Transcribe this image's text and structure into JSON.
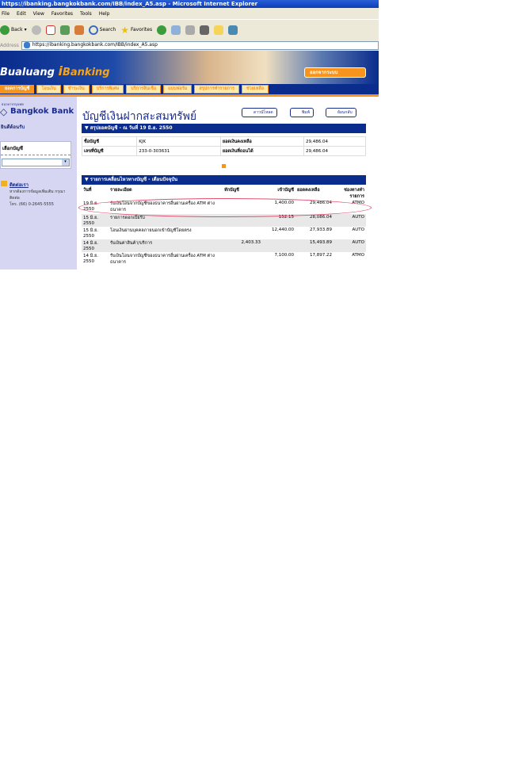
{
  "window": {
    "title": "https://ibanking.bangkokbank.com/IBB/index_A5.asp - Microsoft Internet Explorer"
  },
  "menu": [
    "File",
    "Edit",
    "View",
    "Favorites",
    "Tools",
    "Help"
  ],
  "toolbar": {
    "back": "Back",
    "search": "Search",
    "favorites": "Favorites"
  },
  "address": {
    "label": "Address",
    "url": "https://ibanking.bangkokbank.com/IBB/index_A5.asp"
  },
  "banner": {
    "logo_left": "Bualuang",
    "logo_right": "Banking",
    "logout": "ออกจากระบบ"
  },
  "nav": [
    "ยอดการบัญชี",
    "โอนเงิน",
    "ชำระเงิน",
    "บริการพิเศษ",
    "บริการสินเชื่อ",
    "แบบฟอร์ม",
    "สรุปการทำรายการ",
    "ช่วยเหลือ"
  ],
  "sidebar": {
    "bank_thai": "ธนาคารกรุงเทพ",
    "bank": "Bangkok Bank",
    "welcome": "ยินดีต้อนรับ",
    "select_account": "เลือกบัญชี",
    "contact_title": "ติดต่อเรา",
    "contact_text": "หากต้องการข้อมูลเพิ่มเติม กรุณาติดต่อ",
    "phone": "โทร. (66) 0-2645-5555"
  },
  "page": {
    "title": "บัญชีเงินฝากสะสมทรัพย์",
    "buttons": [
      "ดาวน์โหลด",
      "พิมพ์",
      "ย้อนกลับ"
    ]
  },
  "summary": {
    "header": "สรุปยอดบัญชี - ณ วันที่ 19 มิ.ย. 2550",
    "rows": [
      [
        "ชื่อบัญชี",
        "KJK",
        "ยอดเงินคงเหลือ",
        "29,486.04"
      ],
      [
        "เลขที่บัญชี",
        "233-0-303631",
        "ยอดเงินที่ถอนได้",
        "29,486.04"
      ]
    ]
  },
  "transactions": {
    "header": "รายการเคลื่อนไหวทางบัญชี - เดือนปัจจุบัน",
    "columns": [
      "วันที่",
      "รายละเอียด",
      "หักบัญชี",
      "เข้าบัญชี",
      "ยอดคงเหลือ",
      "ช่องทางทำรายการ"
    ],
    "rows": [
      [
        "19 มิ.ย. 2550",
        "รับเงินโอนจากบัญชีของธนาคารอื่นผ่านเครื่อง ATM ต่างธนาคาร",
        "",
        "1,400.00",
        "29,486.04",
        "ATMO"
      ],
      [
        "15 มิ.ย. 2550",
        "รายการดอกเบี้ยรับ",
        "",
        "152.15",
        "28,086.04",
        "AUTO"
      ],
      [
        "15 มิ.ย. 2550",
        "โอนเงินผ่านบุคคลภายนอกเข้าบัญชีโดยตรง",
        "",
        "12,440.00",
        "27,933.89",
        "AUTO"
      ],
      [
        "14 มิ.ย. 2550",
        "รับเงินค่าสินค้า/บริการ",
        "2,403.33",
        "",
        "15,493.89",
        "AUTO"
      ],
      [
        "14 มิ.ย. 2550",
        "รับเงินโอนจากบัญชีของธนาคารอื่นผ่านเครื่อง ATM ต่างธนาคาร",
        "",
        "7,100.00",
        "17,897.22",
        "ATMO"
      ]
    ]
  }
}
